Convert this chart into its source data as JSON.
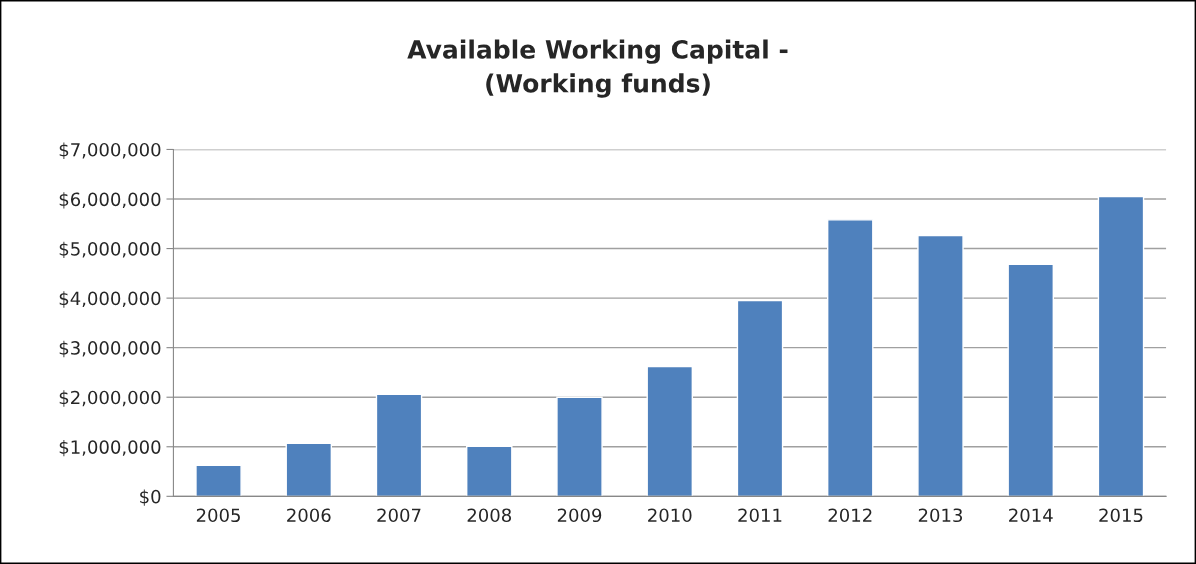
{
  "chart_data": {
    "type": "bar",
    "title": "Available Working Capital -\n(Working funds)",
    "categories": [
      "2005",
      "2006",
      "2007",
      "2008",
      "2009",
      "2010",
      "2011",
      "2012",
      "2013",
      "2014",
      "2015"
    ],
    "values": [
      625000,
      1070000,
      2060000,
      1010000,
      2000000,
      2620000,
      3950000,
      5580000,
      5260000,
      4680000,
      6050000
    ],
    "color": "#4f81bd",
    "ylim": [
      0,
      7000000
    ],
    "yticks": [
      {
        "value": 0,
        "label": "$0"
      },
      {
        "value": 1000000,
        "label": "$1,000,000"
      },
      {
        "value": 2000000,
        "label": "$2,000,000"
      },
      {
        "value": 3000000,
        "label": "$3,000,000"
      },
      {
        "value": 4000000,
        "label": "$4,000,000"
      },
      {
        "value": 5000000,
        "label": "$5,000,000"
      },
      {
        "value": 6000000,
        "label": "$6,000,000"
      },
      {
        "value": 7000000,
        "label": "$7,000,000"
      }
    ],
    "grid": "y",
    "legend": false
  }
}
